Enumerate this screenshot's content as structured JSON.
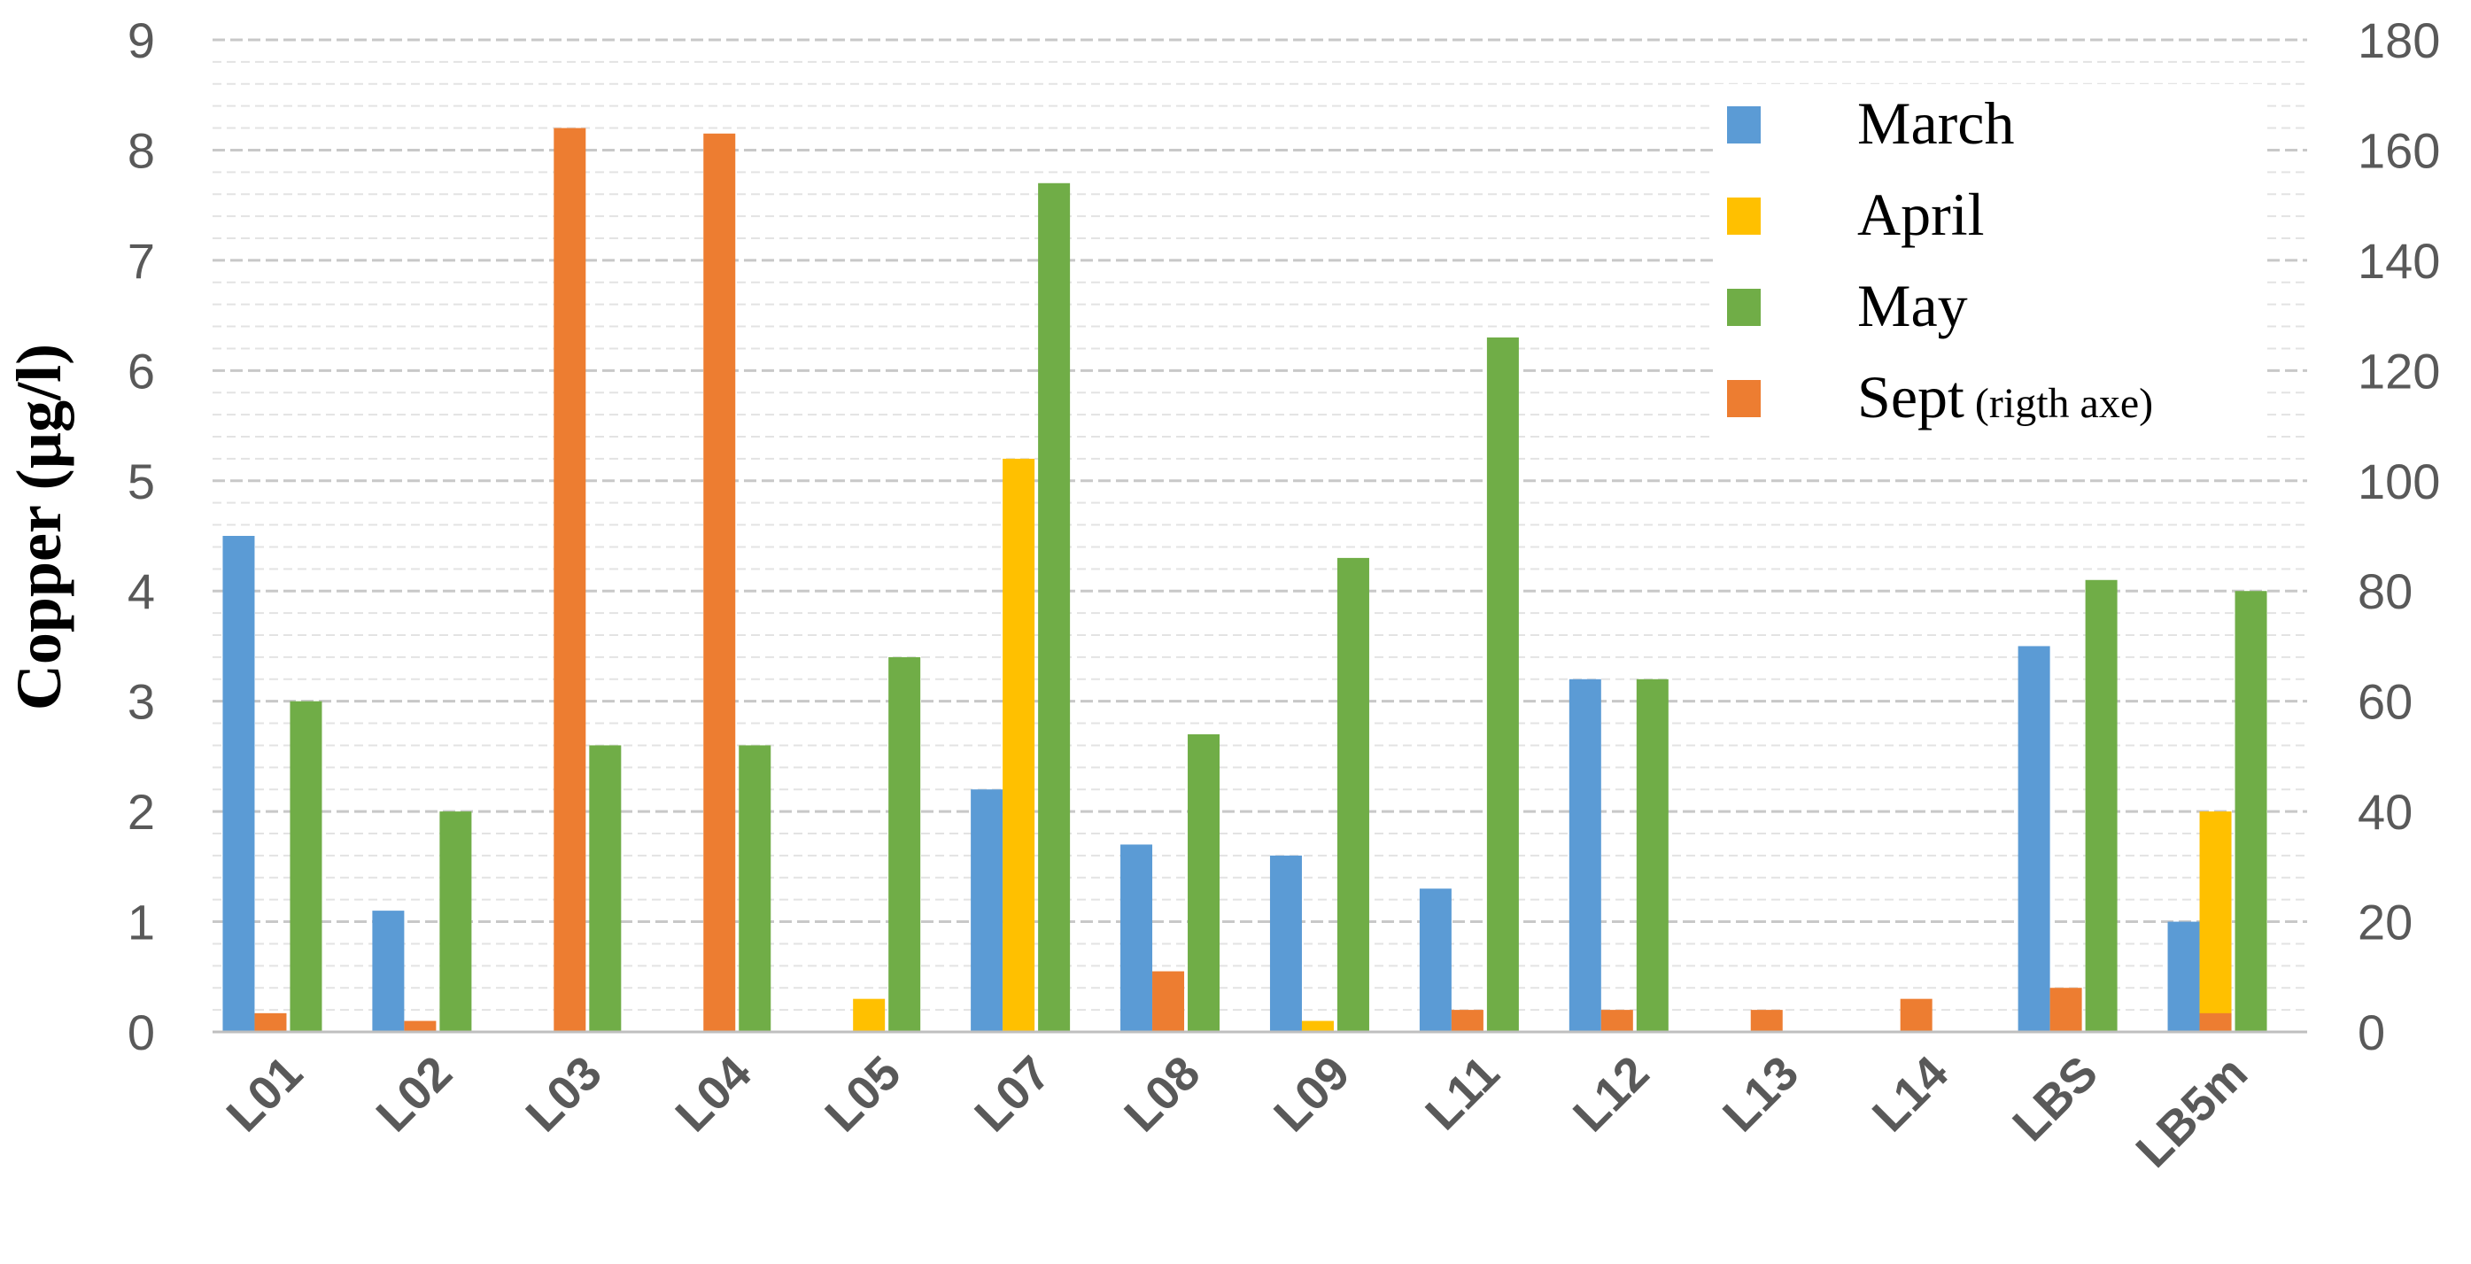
{
  "chart_data": {
    "type": "bar",
    "ylabel": "Copper (µg/l)",
    "categories": [
      "L01",
      "L02",
      "L03",
      "L04",
      "L05",
      "L07",
      "L08",
      "L09",
      "L11",
      "L12",
      "L13",
      "L14",
      "LBS",
      "LB5m"
    ],
    "ylim_left": [
      0,
      9
    ],
    "yticks_left": [
      "0",
      "1",
      "2",
      "3",
      "4",
      "5",
      "6",
      "7",
      "8",
      "9"
    ],
    "ylim_right": [
      0,
      180
    ],
    "yticks_right": [
      "0",
      "20",
      "40",
      "60",
      "80",
      "100",
      "120",
      "140",
      "160",
      "180"
    ],
    "grid": true,
    "legend_position": "top-right",
    "series": [
      {
        "name": "March",
        "axis": "left",
        "color": "#5B9BD5",
        "values": [
          4.5,
          1.1,
          0,
          0,
          0,
          2.2,
          1.7,
          1.6,
          1.3,
          3.2,
          0,
          0,
          3.5,
          1.0
        ]
      },
      {
        "name": "April",
        "axis": "left",
        "color": "#FFC000",
        "values": [
          0,
          0,
          0,
          0,
          0.3,
          5.2,
          0,
          0.1,
          0,
          0,
          0,
          0,
          0,
          2.0
        ]
      },
      {
        "name": "Sept",
        "legend_note": "(rigth axe)",
        "axis": "right",
        "color": "#ED7D31",
        "values": [
          3.4,
          2.0,
          164,
          163,
          0,
          0,
          11,
          0,
          4.0,
          4.0,
          4.0,
          6.0,
          8.0,
          3.4
        ]
      },
      {
        "name": "May",
        "axis": "left",
        "color": "#70AD47",
        "values": [
          3.0,
          2.0,
          2.6,
          2.6,
          3.4,
          7.7,
          2.7,
          4.3,
          6.3,
          3.2,
          0,
          0,
          4.1,
          4.0
        ]
      }
    ],
    "legend_order": [
      "March",
      "April",
      "May",
      "Sept"
    ]
  }
}
